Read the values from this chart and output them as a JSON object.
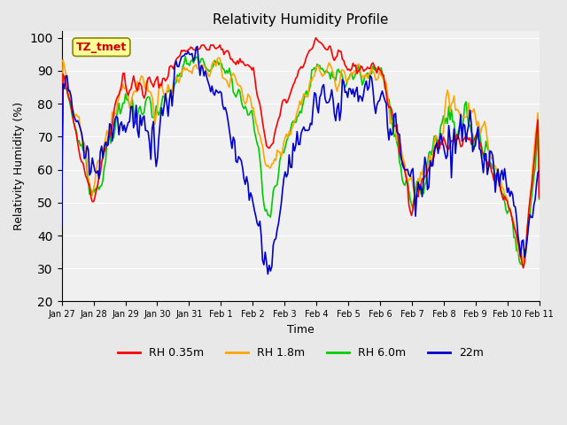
{
  "title": "Relativity Humidity Profile",
  "xlabel": "Time",
  "ylabel": "Relativity Humidity (%)",
  "ylim": [
    20,
    102
  ],
  "yticks": [
    20,
    30,
    40,
    50,
    60,
    70,
    80,
    90,
    100
  ],
  "xtick_labels": [
    "Jan 27",
    "Jan 28",
    "Jan 29",
    "Jan 30",
    "Jan 31",
    "Feb 1",
    "Feb 2",
    "Feb 3",
    "Feb 4",
    "Feb 5",
    "Feb 6",
    "Feb 7",
    "Feb 8",
    "Feb 9",
    "Feb 10",
    "Feb 11"
  ],
  "legend_labels": [
    "RH 0.35m",
    "RH 1.8m",
    "RH 6.0m",
    "22m"
  ],
  "colors": {
    "rh035": "#ff0000",
    "rh18": "#ffa500",
    "rh60": "#00cc00",
    "rh22": "#0000cd"
  },
  "bg_color": "#e8e8e8",
  "plot_bg_color": "#f0f0f0",
  "annotation_text": "TZ_tmet",
  "annotation_color": "#cc0000",
  "annotation_bg": "#ffff99",
  "annotation_border": "#888800"
}
